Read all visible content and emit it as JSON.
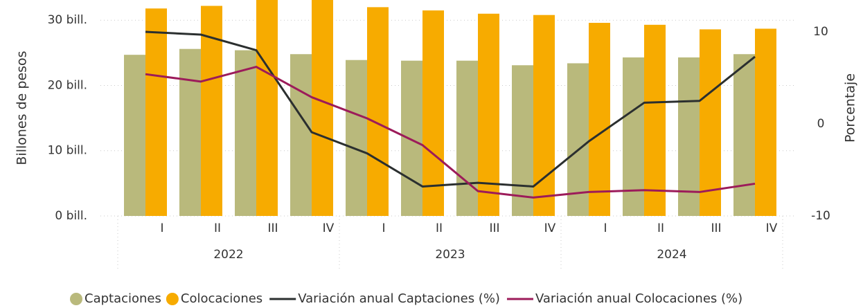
{
  "chart_data": {
    "type": "bar_line",
    "categories": [
      "I",
      "II",
      "III",
      "IV",
      "I",
      "II",
      "III",
      "IV",
      "I",
      "II",
      "III",
      "IV"
    ],
    "years": [
      "2022",
      "2023",
      "2024"
    ],
    "ylabel": "Billones de pesos",
    "y2label": "Porcentaje",
    "ylim": [
      0,
      33.1
    ],
    "yticks": [
      {
        "value": 0,
        "label": "0 bill."
      },
      {
        "value": 10,
        "label": "10 bill."
      },
      {
        "value": 20,
        "label": "20 bill."
      },
      {
        "value": 30,
        "label": "30 bill."
      }
    ],
    "y2lim": [
      -10,
      13.46
    ],
    "y2ticks": [
      -10,
      0,
      10
    ],
    "grid": true,
    "legend": "bottom",
    "series": [
      {
        "name": "Captaciones",
        "type": "bar",
        "color": "#b9b97c",
        "values": [
          24.7,
          25.6,
          25.4,
          24.8,
          23.9,
          23.8,
          23.8,
          23.1,
          23.4,
          24.3,
          24.3,
          24.8
        ]
      },
      {
        "name": "Colocaciones",
        "type": "bar",
        "color": "#f7ab00",
        "values": [
          31.8,
          32.2,
          33.5,
          33.5,
          32.0,
          31.5,
          31.0,
          30.8,
          29.6,
          29.3,
          28.6,
          28.7
        ]
      },
      {
        "name": "Variación anual Captaciones (%)",
        "type": "line",
        "axis": "y2",
        "color": "#2b2f2f",
        "values": [
          10.0,
          9.7,
          8.0,
          -0.9,
          -3.2,
          -6.8,
          -6.4,
          -6.8,
          -1.9,
          2.3,
          2.5,
          7.3
        ]
      },
      {
        "name": "Variación anual Colocaciones (%)",
        "type": "line",
        "axis": "y2",
        "color": "#9c1b5a",
        "values": [
          5.4,
          4.6,
          6.2,
          2.9,
          0.6,
          -2.3,
          -7.3,
          -8.0,
          -7.4,
          -7.2,
          -7.4,
          -6.5
        ]
      }
    ]
  }
}
